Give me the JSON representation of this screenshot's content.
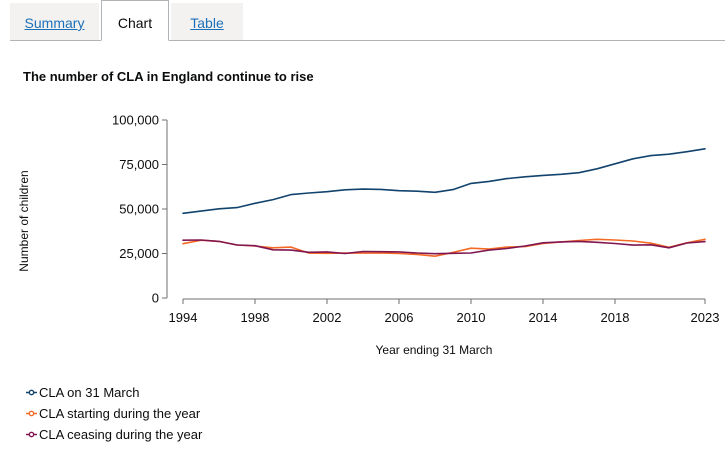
{
  "tabs": [
    {
      "label": "Summary"
    },
    {
      "label": "Chart"
    },
    {
      "label": "Table"
    }
  ],
  "chart_data": {
    "type": "line",
    "title": "The number of CLA in England continue to rise",
    "xlabel": "Year ending 31 March",
    "ylabel": "Number of children",
    "xlim": [
      1994,
      2023
    ],
    "ylim": [
      0,
      100000
    ],
    "x_ticks": [
      1994,
      1998,
      2002,
      2006,
      2010,
      2014,
      2018,
      2023
    ],
    "x_tick_labels": [
      "1994",
      "1998",
      "2002",
      "2006",
      "2010",
      "2014",
      "2018",
      "2023"
    ],
    "y_ticks": [
      0,
      25000,
      50000,
      75000,
      100000
    ],
    "y_tick_labels": [
      "0",
      "25,000",
      "50,000",
      "75,000",
      "100,000"
    ],
    "grid": false,
    "legend": "bottom",
    "x": [
      1994,
      1995,
      1996,
      1997,
      1998,
      1999,
      2000,
      2001,
      2002,
      2003,
      2004,
      2005,
      2006,
      2007,
      2008,
      2009,
      2010,
      2011,
      2012,
      2013,
      2014,
      2015,
      2016,
      2017,
      2018,
      2019,
      2020,
      2021,
      2022,
      2023
    ],
    "series": [
      {
        "name": "CLA on 31 March",
        "color": "#12436d",
        "values": [
          47600,
          48800,
          50100,
          50800,
          53200,
          55300,
          58100,
          59000,
          59700,
          60800,
          61200,
          61000,
          60300,
          60000,
          59400,
          60900,
          64400,
          65500,
          67100,
          68100,
          68900,
          69500,
          70400,
          72600,
          75400,
          78200,
          80000,
          80800,
          82200,
          83800
        ]
      },
      {
        "name": "CLA starting during the year",
        "color": "#f46a25",
        "values": [
          30500,
          32500,
          31800,
          29800,
          29200,
          28200,
          28600,
          25200,
          25100,
          25200,
          25200,
          25300,
          25000,
          24500,
          23500,
          25600,
          28000,
          27500,
          28600,
          28900,
          30600,
          31500,
          32300,
          33000,
          32600,
          32000,
          30800,
          28500,
          31000,
          33000
        ]
      },
      {
        "name": "CLA ceasing during the year",
        "color": "#801650",
        "values": [
          32500,
          32600,
          31800,
          29800,
          29400,
          27100,
          26900,
          25700,
          25900,
          25000,
          26100,
          26000,
          25900,
          25300,
          24900,
          25100,
          25300,
          26900,
          27800,
          29200,
          31000,
          31500,
          31800,
          31300,
          30600,
          29700,
          29900,
          28200,
          30900,
          31700
        ]
      }
    ]
  }
}
